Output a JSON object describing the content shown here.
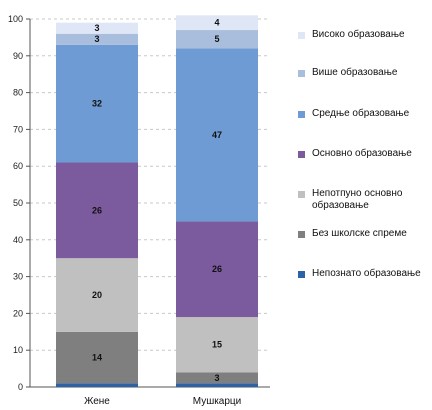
{
  "chart_data": {
    "type": "bar",
    "stacked": true,
    "categories": [
      "Жене",
      "Мушкарци"
    ],
    "ylim": [
      0,
      100
    ],
    "yticks": [
      0,
      10,
      20,
      30,
      40,
      50,
      60,
      70,
      80,
      90,
      100
    ],
    "grid": "dashed-horizontal",
    "legend_position": "right",
    "series": [
      {
        "name": "Непознато образовање",
        "color": "#2e62a6",
        "values": [
          1,
          1
        ],
        "labels": [
          "",
          ""
        ]
      },
      {
        "name": "Без школске спреме",
        "color": "#7f7f7f",
        "values": [
          14,
          3
        ],
        "labels": [
          "14",
          "3"
        ]
      },
      {
        "name": "Непотпуно основно образовање",
        "color": "#c0c0c0",
        "values": [
          20,
          15
        ],
        "labels": [
          "20",
          "15"
        ]
      },
      {
        "name": "Основно образовање",
        "color": "#7b5a9e",
        "values": [
          26,
          26
        ],
        "labels": [
          "26",
          "26"
        ]
      },
      {
        "name": "Средње образовање",
        "color": "#6e9bd4",
        "values": [
          32,
          47
        ],
        "labels": [
          "32",
          "47"
        ]
      },
      {
        "name": "Више образовање",
        "color": "#a9bedc",
        "values": [
          3,
          5
        ],
        "labels": [
          "3",
          "5"
        ]
      },
      {
        "name": "Високо образовање",
        "color": "#dfe7f7",
        "values": [
          3,
          4
        ],
        "labels": [
          "3",
          "4"
        ]
      }
    ]
  }
}
